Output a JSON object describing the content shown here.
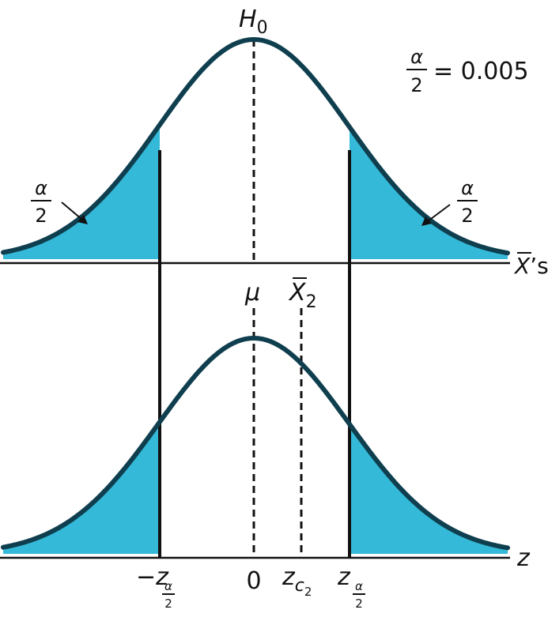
{
  "colors": {
    "curve": "#0f3f4f",
    "tail_fill": "#35b9d8",
    "line": "#111111"
  },
  "top_panel": {
    "h0_base": "H",
    "h0_sub": "0",
    "alpha_half_value_text": "= 0.005",
    "left_tail_label": {
      "num": "α",
      "den": "2"
    },
    "right_tail_label": {
      "num": "α",
      "den": "2"
    },
    "x_axis_label_main": "X",
    "x_axis_label_suffix": "’s",
    "mu_label": "μ",
    "xbar2_base": "X",
    "xbar2_sub": "2"
  },
  "bottom_panel": {
    "z_axis_label": "z",
    "left_crit": {
      "sign": "−",
      "base": "z",
      "sub_num": "α",
      "sub_den": "2"
    },
    "zero_label": "0",
    "zc2": {
      "base": "z",
      "sub": "c",
      "subsub": "2"
    },
    "right_crit": {
      "base": "z",
      "sub_num": "α",
      "sub_den": "2"
    }
  },
  "alpha_half": {
    "num": "α",
    "den": "2",
    "value": 0.005
  }
}
